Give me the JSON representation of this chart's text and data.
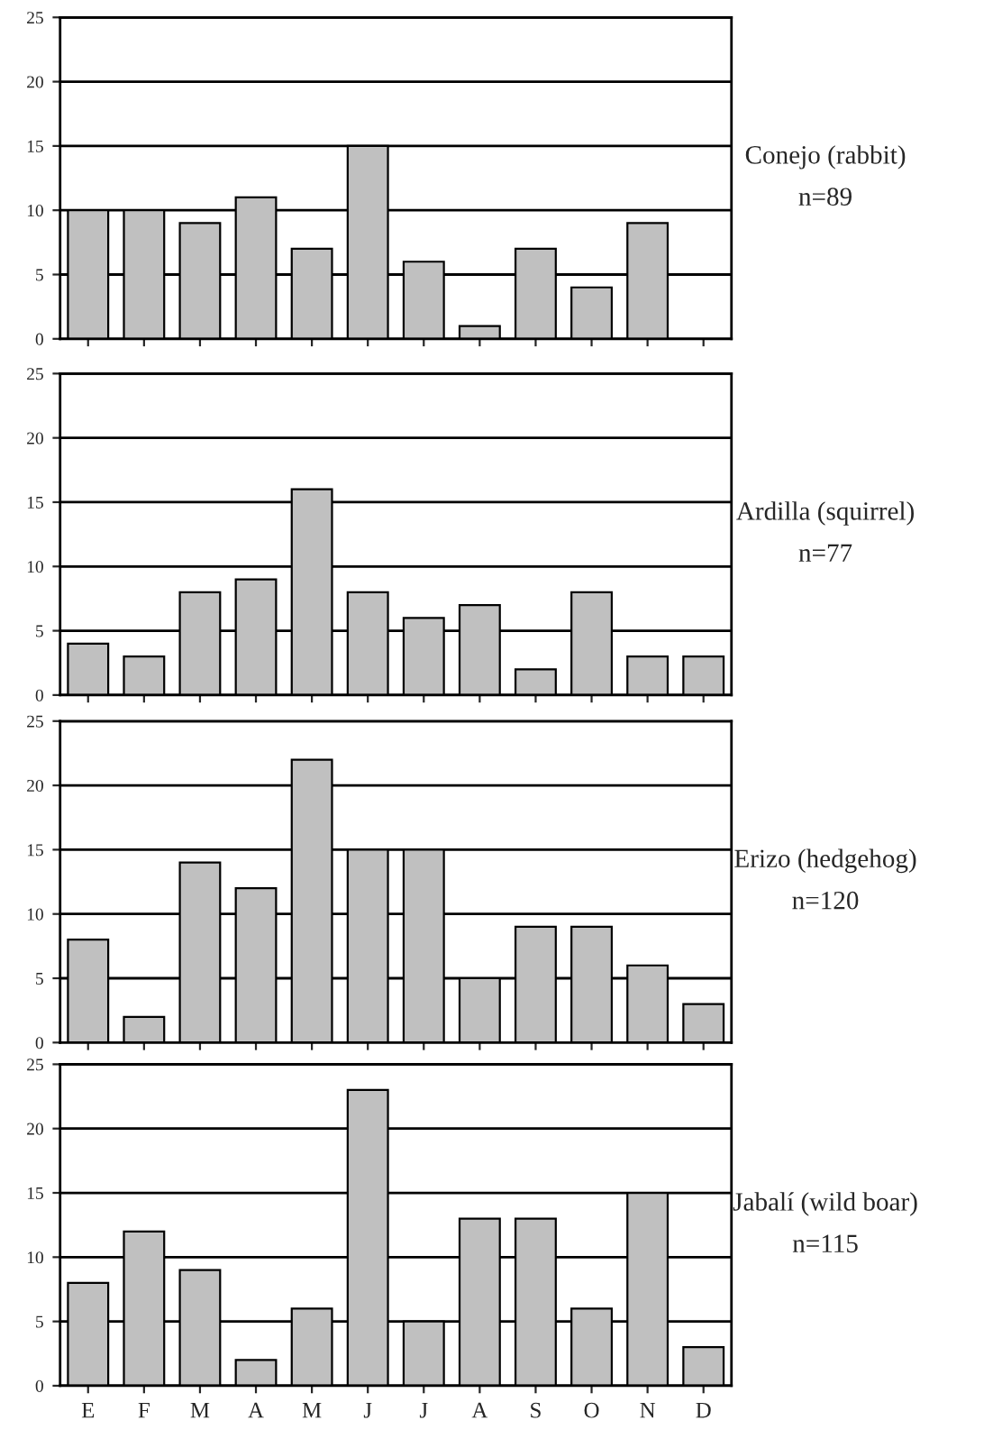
{
  "chart_data": [
    {
      "type": "bar",
      "categories": [
        null,
        null,
        null,
        null,
        null,
        null,
        null,
        null,
        null,
        null,
        null,
        null
      ],
      "values": [
        10,
        10,
        9,
        11,
        7,
        15,
        6,
        1,
        7,
        4,
        9,
        0
      ],
      "color": "#c0c0c0",
      "ylim": [
        0,
        25
      ],
      "yticks": [
        0,
        5,
        10,
        15,
        20,
        25
      ],
      "grid": "y",
      "annotations": [
        "Conejo (rabbit)",
        "n=89"
      ]
    },
    {
      "type": "bar",
      "categories": [
        null,
        null,
        null,
        null,
        null,
        null,
        null,
        null,
        null,
        null,
        null,
        null
      ],
      "values": [
        4,
        3,
        8,
        9,
        16,
        8,
        6,
        7,
        2,
        8,
        3,
        3
      ],
      "color": "#c0c0c0",
      "ylim": [
        0,
        25
      ],
      "yticks": [
        0,
        5,
        10,
        15,
        20,
        25
      ],
      "grid": "y",
      "annotations": [
        "Ardilla (squirrel)",
        "n=77"
      ]
    },
    {
      "type": "bar",
      "categories": [
        null,
        null,
        null,
        null,
        null,
        null,
        null,
        null,
        null,
        null,
        null,
        null
      ],
      "values": [
        8,
        2,
        14,
        12,
        22,
        15,
        15,
        5,
        9,
        9,
        6,
        3
      ],
      "color": "#c0c0c0",
      "ylim": [
        0,
        25
      ],
      "yticks": [
        0,
        5,
        10,
        15,
        20,
        25
      ],
      "grid": "y",
      "annotations": [
        "Erizo (hedgehog)",
        "n=120"
      ]
    },
    {
      "type": "bar",
      "categories": [
        "E",
        "F",
        "M",
        "A",
        "M",
        "J",
        "J",
        "A",
        "S",
        "O",
        "N",
        "D"
      ],
      "values": [
        8,
        12,
        9,
        2,
        6,
        23,
        5,
        13,
        13,
        6,
        15,
        3
      ],
      "color": "#c0c0c0",
      "ylim": [
        0,
        25
      ],
      "yticks": [
        0,
        5,
        10,
        15,
        20,
        25
      ],
      "grid": "y",
      "annotations": [
        "Jabalí (wild boar)",
        "n=115"
      ]
    }
  ]
}
